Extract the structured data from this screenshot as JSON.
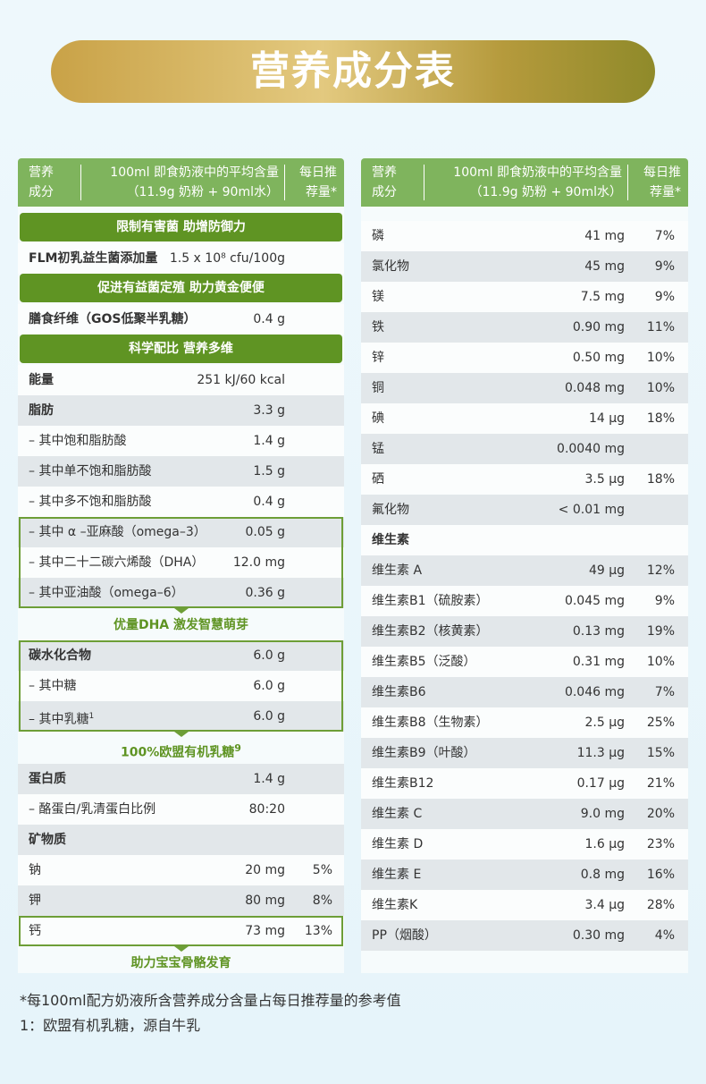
{
  "title": "营养成分表",
  "left_table": {
    "header": [
      [
        "营养",
        "成分"
      ],
      [
        "100ml 即食奶液中的平均含量",
        "（11.9g 奶粉 + 90ml水）"
      ],
      [
        "每日推",
        "荐量*"
      ]
    ],
    "blocks": [
      {
        "heading": "限制有害菌 助增防御力",
        "rows": [
          {
            "name": "FLM初乳益生菌添加量",
            "amount": "1.5 x 10⁸ cfu/100g",
            "bold": true
          }
        ]
      },
      {
        "heading": "促进有益菌定殖 助力黄金便便",
        "rows": [
          {
            "name": "膳食纤维（GOS低聚半乳糖）",
            "amount": "0.4 g",
            "bold": true
          }
        ]
      },
      {
        "heading": "科学配比 营养多维",
        "rows": [
          {
            "name": "能量",
            "amount": "251 kJ/60 kcal",
            "bold": true
          },
          {
            "name": "脂肪",
            "amount": "3.3 g",
            "bold": true
          },
          {
            "name": "– 其中饱和脂肪酸",
            "amount": "1.4 g"
          },
          {
            "name": "– 其中单不饱和脂肪酸",
            "amount": "1.5 g"
          },
          {
            "name": "– 其中多不饱和脂肪酸",
            "amount": "0.4 g"
          }
        ]
      },
      {
        "rows": [
          {
            "name": "– 其中 α –亚麻酸（omega–3）",
            "amount": "0.05 g"
          },
          {
            "name": "– 其中二十二碳六烯酸（DHA）",
            "amount": "12.0 mg"
          },
          {
            "name": "– 其中亚油酸（omega–6）",
            "amount": "0.36 g"
          }
        ],
        "caption": "优量DHA 激发智慧萌芽"
      },
      {
        "rows": [
          {
            "name": "碳水化合物",
            "amount": "6.0 g",
            "bold": true
          },
          {
            "name": "– 其中糖",
            "amount": "6.0 g"
          },
          {
            "name": "– 其中乳糖",
            "note": "1",
            "amount": "6.0 g"
          }
        ],
        "caption": "100%欧盟有机乳糖",
        "caption_note": "9"
      },
      {
        "rows": [
          {
            "name": "蛋白质",
            "amount": "1.4 g",
            "bold": true
          },
          {
            "name": "– 酪蛋白/乳清蛋白比例",
            "amount": "80:20"
          },
          {
            "name": "矿物质",
            "bold": true
          },
          {
            "name": "钠",
            "amount": "20 mg",
            "rdi": "5%"
          },
          {
            "name": "钾",
            "amount": "80 mg",
            "rdi": "8%"
          }
        ]
      },
      {
        "rows": [
          {
            "name": "钙",
            "amount": "73 mg",
            "rdi": "13%"
          }
        ],
        "caption": "助力宝宝骨骼发育"
      }
    ]
  },
  "right_table": {
    "header": [
      [
        "营养",
        "成分"
      ],
      [
        "100ml 即食奶液中的平均含量",
        "（11.9g 奶粉 + 90ml水）"
      ],
      [
        "每日推",
        "荐量*"
      ]
    ],
    "blocks": [
      {
        "rows": [
          {
            "name": "磷",
            "amount": "41 mg",
            "rdi": "7%"
          },
          {
            "name": "氯化物",
            "amount": "45 mg",
            "rdi": "9%"
          },
          {
            "name": "镁",
            "amount": "7.5 mg",
            "rdi": "9%"
          },
          {
            "name": "铁",
            "amount": "0.90 mg",
            "rdi": "11%"
          },
          {
            "name": "锌",
            "amount": "0.50 mg",
            "rdi": "10%"
          },
          {
            "name": "铜",
            "amount": "0.048 mg",
            "rdi": "10%"
          },
          {
            "name": "碘",
            "amount": "14 μg",
            "rdi": "18%"
          },
          {
            "name": "锰",
            "amount": "0.0040 mg"
          },
          {
            "name": "硒",
            "amount": "3.5 μg",
            "rdi": "18%"
          },
          {
            "name": "氟化物",
            "amount": "< 0.01 mg"
          },
          {
            "name": "维生素",
            "bold": true
          },
          {
            "name": "维生素 A",
            "amount": "49 μg",
            "rdi": "12%"
          },
          {
            "name": "维生素B1（硫胺素）",
            "amount": "0.045 mg",
            "rdi": "9%"
          },
          {
            "name": "维生素B2（核黄素）",
            "amount": "0.13 mg",
            "rdi": "19%"
          },
          {
            "name": "维生素B5（泛酸）",
            "amount": "0.31 mg",
            "rdi": "10%"
          },
          {
            "name": "维生素B6",
            "amount": "0.046 mg",
            "rdi": "7%"
          },
          {
            "name": "维生素B8（生物素）",
            "amount": "2.5 μg",
            "rdi": "25%"
          },
          {
            "name": "维生素B9（叶酸）",
            "amount": "11.3 μg",
            "rdi": "15%"
          },
          {
            "name": "维生素B12",
            "amount": "0.17 μg",
            "rdi": "21%"
          },
          {
            "name": "维生素 C",
            "amount": "9.0 mg",
            "rdi": "20%"
          },
          {
            "name": "维生素 D",
            "amount": "1.6 μg",
            "rdi": "23%"
          },
          {
            "name": "维生素 E",
            "amount": "0.8 mg",
            "rdi": "16%"
          },
          {
            "name": "维生素K",
            "amount": "3.4 μg",
            "rdi": "28%"
          },
          {
            "name": "PP（烟酸）",
            "amount": "0.30 mg",
            "rdi": "4%"
          }
        ]
      }
    ]
  },
  "footnotes": [
    "*每100ml配方奶液所含营养成分含量占每日推荐量的参考值",
    "1：欧盟有机乳糖，源自牛乳"
  ]
}
